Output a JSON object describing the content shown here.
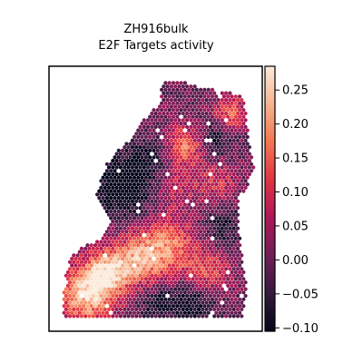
{
  "chart_data": {
    "type": "scatter",
    "title": "ZH916bulk",
    "subtitle": "E2F Targets activity",
    "xlabel": "",
    "ylabel": "",
    "colorbar": {
      "min": -0.105,
      "max": 0.285,
      "ticks": [
        -0.1,
        -0.05,
        0.0,
        0.05,
        0.1,
        0.15,
        0.2,
        0.25
      ],
      "tick_labels": [
        "−0.10",
        "−0.05",
        "0.00",
        "0.05",
        "0.10",
        "0.15",
        "0.20",
        "0.25"
      ],
      "colormap": "rocket",
      "stops": [
        "#03051a",
        "#35193e",
        "#701f57",
        "#ad1759",
        "#e13342",
        "#f37651",
        "#f6b48f",
        "#faebdd"
      ]
    },
    "grid": false,
    "axis_ticks": false
  }
}
